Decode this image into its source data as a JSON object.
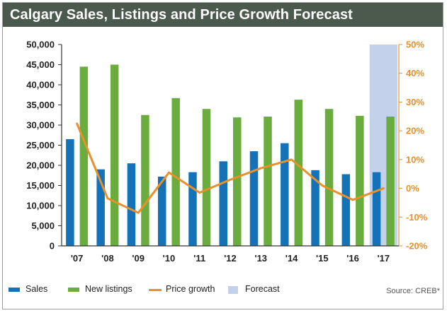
{
  "title": "Calgary Sales, Listings and Price Growth Forecast",
  "source": "Source: CREB*",
  "legend": {
    "sales": "Sales",
    "new_listings": "New listings",
    "price_growth": "Price growth",
    "forecast": "Forecast"
  },
  "colors": {
    "sales": "#1372b8",
    "new_listings": "#6aad3e",
    "price_growth": "#e8902a",
    "forecast": "#c3d2ea",
    "right_axis": "#e8902a",
    "title_bar": "#4b5a4c"
  },
  "chart_data": {
    "type": "bar",
    "title": "Calgary Sales, Listings and Price Growth Forecast",
    "categories": [
      "'07",
      "'08",
      "'09",
      "'10",
      "'11",
      "'12",
      "'13",
      "'14",
      "'15",
      "'16",
      "'17"
    ],
    "y_left": {
      "ylim": [
        0,
        50000
      ],
      "ticks": [
        "0",
        "5,000",
        "10,000",
        "15,000",
        "20,000",
        "25,000",
        "30,000",
        "35,000",
        "40,000",
        "45,000",
        "50,000"
      ]
    },
    "y_right": {
      "ylim": [
        -20,
        50
      ],
      "ticks": [
        "-20%",
        "-10%",
        "0%",
        "10%",
        "20%",
        "30%",
        "40%",
        "50%"
      ]
    },
    "series": [
      {
        "name": "Sales",
        "type": "bar",
        "axis": "left",
        "values": [
          26500,
          19000,
          20500,
          17200,
          18300,
          21000,
          23500,
          25500,
          18800,
          17800,
          18300
        ]
      },
      {
        "name": "New listings",
        "type": "bar",
        "axis": "left",
        "values": [
          44500,
          45000,
          32500,
          36700,
          34000,
          31900,
          32100,
          36300,
          34000,
          32300,
          32100
        ]
      },
      {
        "name": "Price growth",
        "type": "line",
        "axis": "right",
        "values": [
          22.5,
          -3.5,
          -8.5,
          5.5,
          -1.5,
          3.0,
          7.0,
          10.0,
          1.0,
          -4.0,
          0.0
        ]
      }
    ],
    "forecast_categories": [
      "'17"
    ],
    "grid": false,
    "legend_position": "bottom-left"
  }
}
